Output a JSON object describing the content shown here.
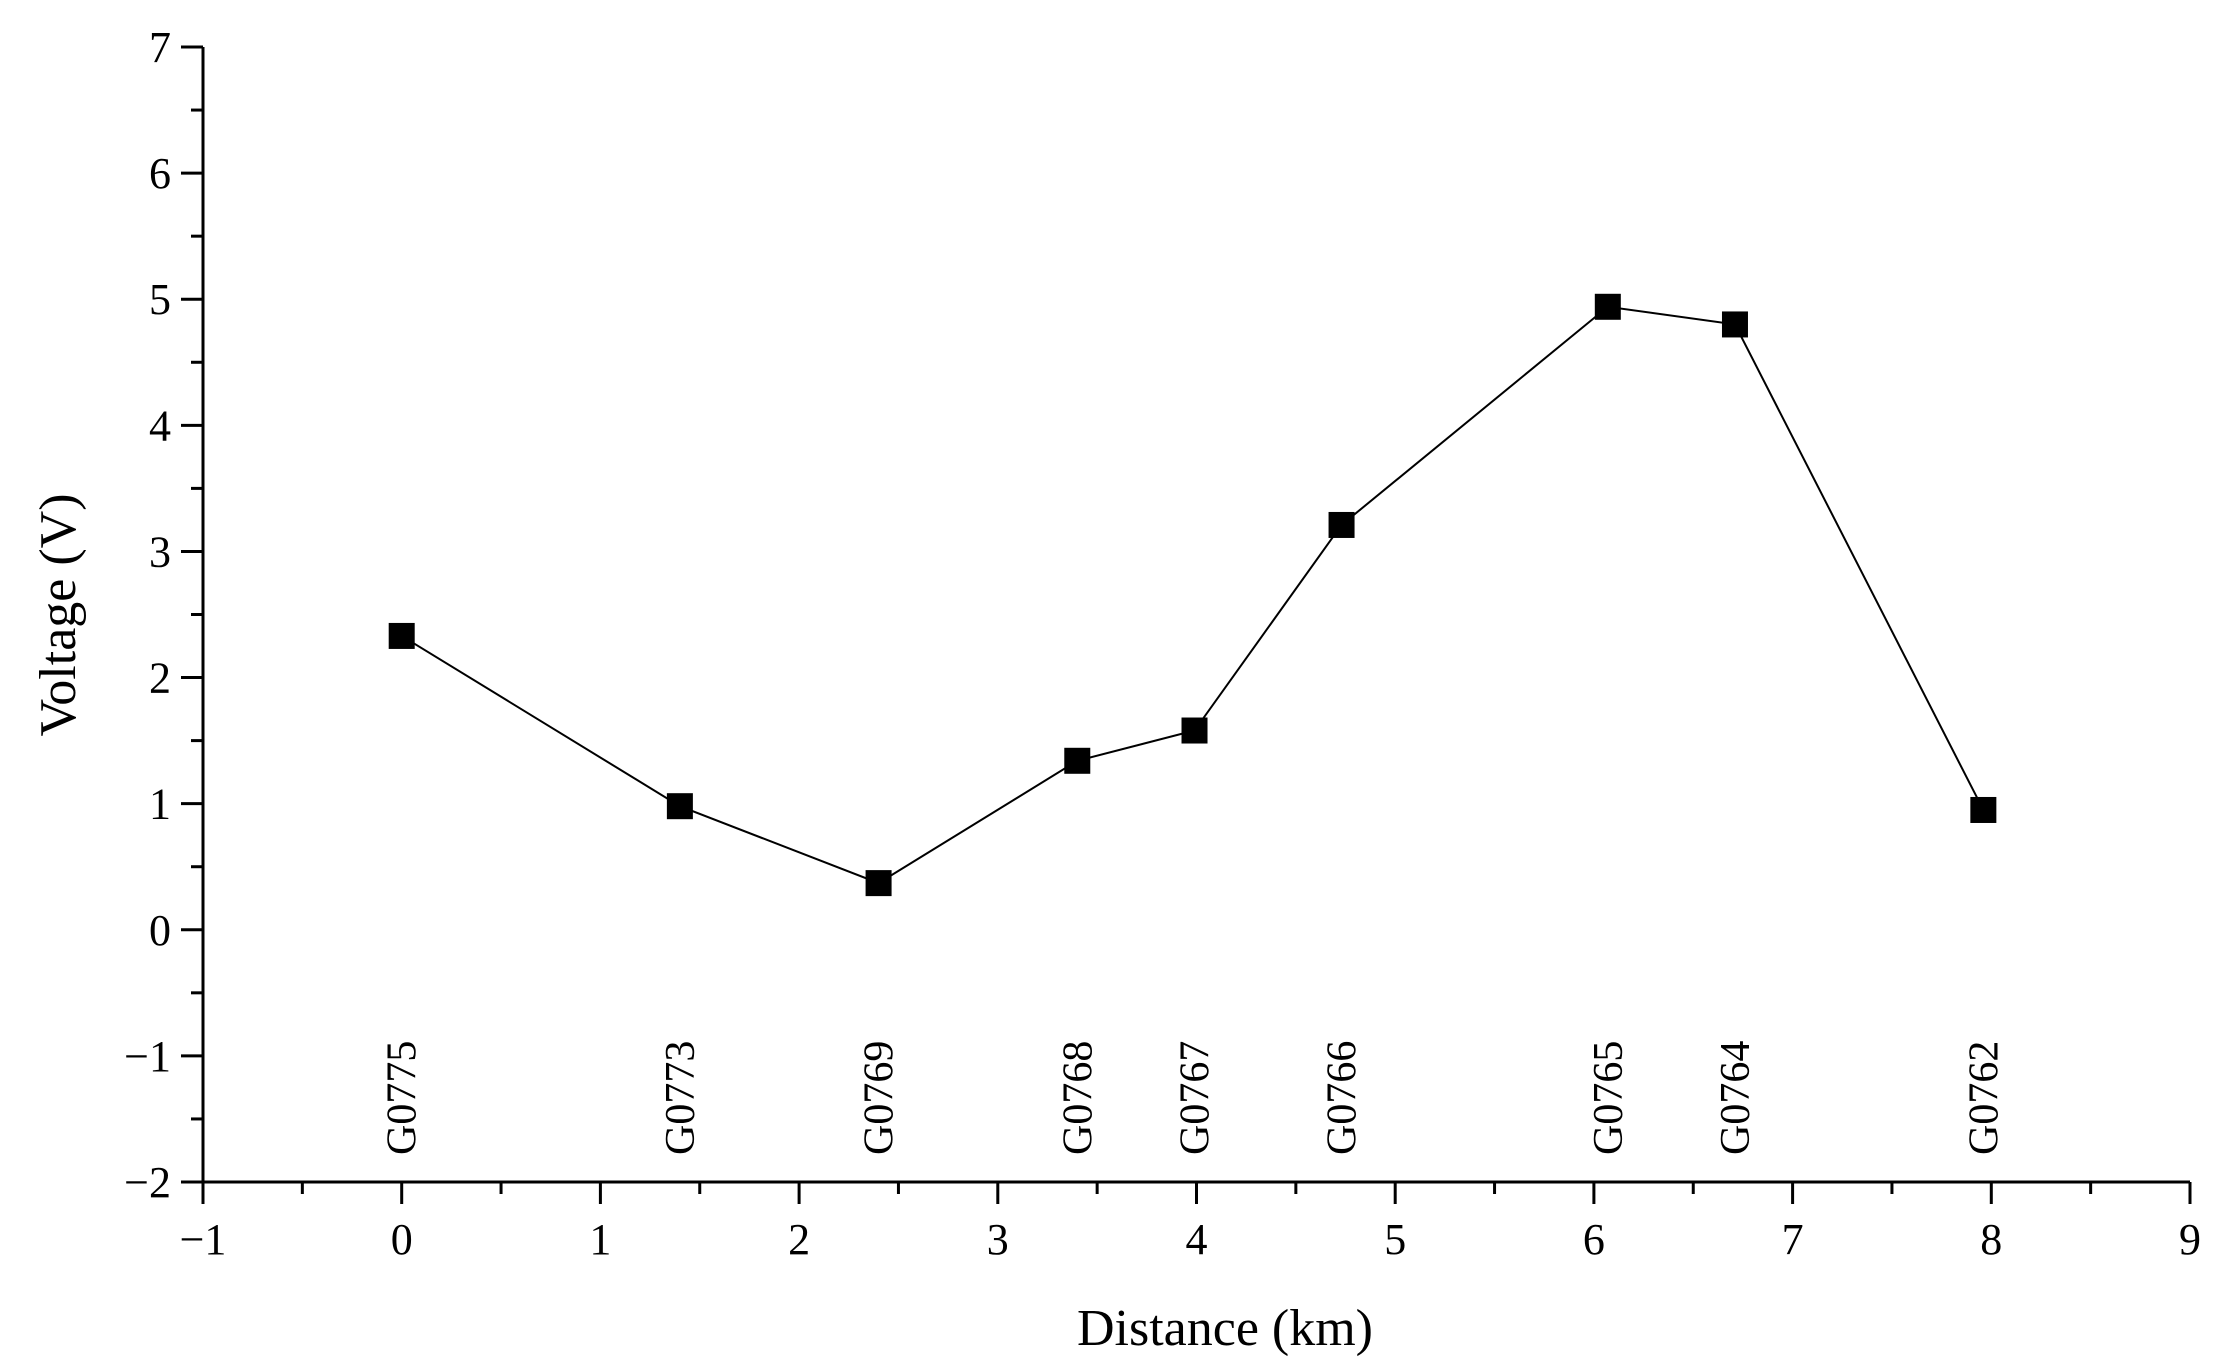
{
  "chart_data": {
    "type": "line",
    "xlabel": "Distance (km)",
    "ylabel": "Voltage (V)",
    "xlim": [
      -1,
      9
    ],
    "ylim": [
      -2,
      7
    ],
    "xticks": [
      -1,
      0,
      1,
      2,
      3,
      4,
      5,
      6,
      7,
      8,
      9
    ],
    "yticks": [
      -2,
      -1,
      0,
      1,
      2,
      3,
      4,
      5,
      6,
      7
    ],
    "xtick_labels": [
      "−1",
      "0",
      "1",
      "2",
      "3",
      "4",
      "5",
      "6",
      "7",
      "8",
      "9"
    ],
    "ytick_labels": [
      "−2",
      "−1",
      "0",
      "1",
      "2",
      "3",
      "4",
      "5",
      "6",
      "7"
    ],
    "grid": false,
    "marker": "square",
    "line_color": "#000000",
    "marker_color": "#000000",
    "series": [
      {
        "x": [
          0,
          1.4,
          2.4,
          3.4,
          3.99,
          4.73,
          6.07,
          6.71,
          7.96
        ],
        "values": [
          2.33,
          0.98,
          0.37,
          1.34,
          1.58,
          3.21,
          4.94,
          4.8,
          0.95
        ]
      }
    ],
    "annotations": [
      {
        "text": "G0775",
        "x": 0
      },
      {
        "text": "G0773",
        "x": 1.4
      },
      {
        "text": "G0769",
        "x": 2.4
      },
      {
        "text": "G0768",
        "x": 3.4
      },
      {
        "text": "G0767",
        "x": 3.99
      },
      {
        "text": "G0766",
        "x": 4.73
      },
      {
        "text": "G0765",
        "x": 6.07
      },
      {
        "text": "G0764",
        "x": 6.71
      },
      {
        "text": "G0762",
        "x": 7.96
      }
    ]
  }
}
